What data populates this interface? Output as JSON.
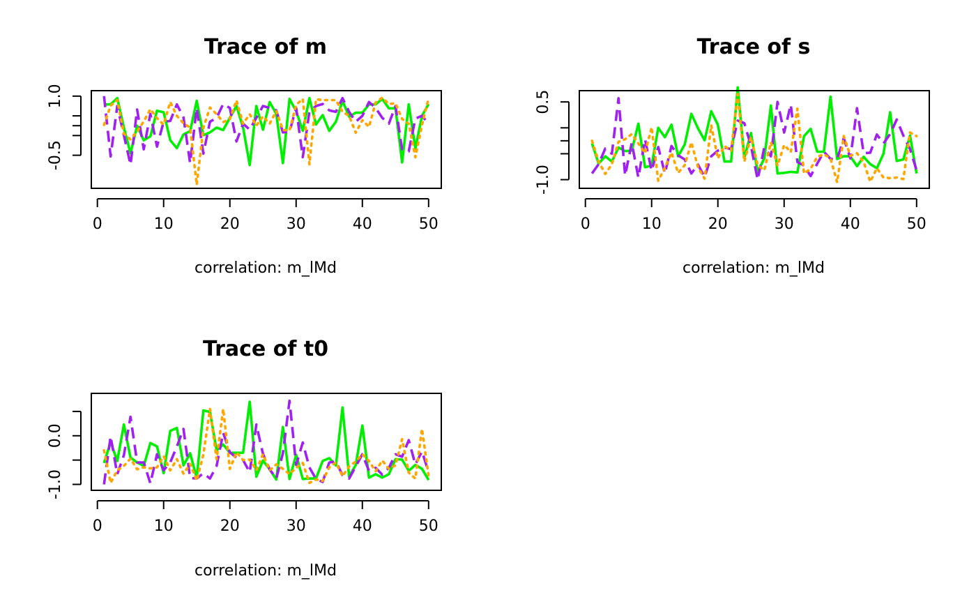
{
  "colors": {
    "green": "#00ee00",
    "purple": "#a020f0",
    "orange": "#ffa500",
    "axis": "#000000"
  },
  "chart_data": [
    {
      "type": "line",
      "title": "Trace of m",
      "xlabel": "correlation: m_lMd",
      "xlim": [
        1,
        50
      ],
      "ylim": [
        -1.25,
        1.05
      ],
      "x_ticks": [
        0,
        10,
        20,
        30,
        40,
        50
      ],
      "y_ticks": [
        1.0,
        0.25,
        -0.5
      ],
      "y_tick_labels": [
        "1.0",
        "",
        "-0.5"
      ],
      "y_minor_ticks": [
        0.5,
        0.0
      ],
      "x": [
        1,
        2,
        3,
        4,
        5,
        6,
        7,
        8,
        9,
        10,
        11,
        12,
        13,
        14,
        15,
        16,
        17,
        18,
        19,
        20,
        21,
        22,
        23,
        24,
        25,
        26,
        27,
        28,
        29,
        30,
        31,
        32,
        33,
        34,
        35,
        36,
        37,
        38,
        39,
        40,
        41,
        42,
        43,
        44,
        45,
        46,
        47,
        48,
        49,
        50
      ],
      "series": [
        {
          "style": "solid",
          "color": "#00ee00",
          "values": [
            0.79,
            0.79,
            0.95,
            0.2,
            -0.45,
            0.25,
            -0.12,
            -0.02,
            0.63,
            0.59,
            -0.12,
            -0.32,
            0.03,
            0.11,
            0.88,
            0.01,
            0.08,
            0.2,
            0.14,
            0.45,
            0.75,
            0.2,
            -0.75,
            0.75,
            0.15,
            0.85,
            0.55,
            -0.7,
            0.93,
            0.62,
            0.12,
            0.95,
            0.28,
            0.52,
            0.12,
            0.35,
            0.88,
            0.48,
            0.58,
            0.58,
            0.79,
            0.79,
            0.93,
            0.69,
            0.69,
            -0.68,
            0.79,
            -0.33,
            0.5,
            0.8
          ]
        },
        {
          "style": "dashed",
          "color": "#a020f0",
          "values": [
            1.0,
            -0.53,
            0.75,
            0.01,
            -0.74,
            0.66,
            -0.35,
            0.55,
            -0.28,
            0.35,
            0.37,
            0.79,
            0.46,
            -0.7,
            0.7,
            -0.46,
            0.35,
            0.45,
            0.8,
            0.7,
            -0.15,
            0.3,
            0.15,
            0.45,
            0.75,
            0.7,
            0.64,
            0.08,
            0.1,
            0.7,
            -0.55,
            0.6,
            0.75,
            0.8,
            0.64,
            0.6,
            0.95,
            0.6,
            0.35,
            0.5,
            0.85,
            0.7,
            0.45,
            0.3,
            0.75,
            -0.35,
            -0.4,
            0.43,
            0.5,
            0.3
          ]
        },
        {
          "style": "dotted",
          "color": "#ffa500",
          "values": [
            0.27,
            0.76,
            0.9,
            0.05,
            -0.1,
            0.1,
            0.36,
            0.67,
            0.44,
            0.28,
            0.85,
            0.5,
            0.31,
            0.2,
            -1.25,
            0.2,
            0.71,
            0.54,
            0.34,
            0.42,
            0.89,
            0.3,
            0.54,
            0.25,
            0.49,
            0.3,
            0.62,
            0.14,
            0.13,
            0.78,
            0.93,
            -0.73,
            0.92,
            0.9,
            0.9,
            0.9,
            0.6,
            0.5,
            0.07,
            0.39,
            0.22,
            0.84,
            0.96,
            0.8,
            0.82,
            0.42,
            0.3,
            -0.55,
            0.27,
            0.95
          ]
        }
      ]
    },
    {
      "type": "line",
      "title": "Trace of s",
      "xlabel": "correlation: m_lMd",
      "xlim": [
        1,
        50
      ],
      "ylim": [
        -1.1,
        0.65
      ],
      "x_ticks": [
        0,
        10,
        20,
        30,
        40,
        50
      ],
      "y_ticks": [
        0.5,
        -0.25,
        -1.0
      ],
      "y_tick_labels": [
        "0.5",
        "",
        "-1.0"
      ],
      "y_minor_ticks": [
        0.0,
        -0.5
      ],
      "x": [
        1,
        2,
        3,
        4,
        5,
        6,
        7,
        8,
        9,
        10,
        11,
        12,
        13,
        14,
        15,
        16,
        17,
        18,
        19,
        20,
        21,
        22,
        23,
        24,
        25,
        26,
        27,
        28,
        29,
        30,
        31,
        32,
        33,
        34,
        35,
        36,
        37,
        38,
        39,
        40,
        41,
        42,
        43,
        44,
        45,
        46,
        47,
        48,
        49,
        50
      ],
      "series": [
        {
          "style": "solid",
          "color": "#00ee00",
          "values": [
            -0.3,
            -0.69,
            -0.55,
            -0.65,
            -0.38,
            -0.45,
            -0.44,
            0.08,
            -0.76,
            -0.73,
            -0.0,
            -0.18,
            0.06,
            -0.55,
            -0.32,
            0.27,
            -0.01,
            -0.24,
            0.32,
            0.06,
            -0.65,
            -0.65,
            0.78,
            -0.58,
            -0.1,
            -0.85,
            -0.59,
            0.43,
            -0.88,
            -0.87,
            -0.85,
            -0.86,
            -0.16,
            -0.02,
            -0.46,
            -0.46,
            0.6,
            -0.6,
            -0.55,
            -0.55,
            -0.74,
            -0.56,
            -0.7,
            -0.78,
            -0.5,
            0.3,
            -0.64,
            -0.61,
            -0.15,
            -0.88
          ]
        },
        {
          "style": "dashed",
          "color": "#a020f0",
          "values": [
            -0.88,
            -0.7,
            -0.4,
            -0.5,
            0.57,
            -0.92,
            -0.29,
            -0.96,
            -0.22,
            -0.83,
            -0.37,
            -0.88,
            -0.35,
            -0.53,
            -0.61,
            -0.88,
            -0.71,
            -0.95,
            -0.55,
            -0.44,
            -0.38,
            -0.41,
            0.14,
            0.09,
            -0.35,
            -1.0,
            -0.38,
            -0.55,
            0.5,
            -0.09,
            0.45,
            -0.66,
            -0.73,
            -0.93,
            -0.69,
            -0.46,
            -0.6,
            -0.6,
            -0.2,
            -0.59,
            0.38,
            -0.49,
            -0.48,
            -0.13,
            -0.3,
            -0.12,
            0.16,
            -0.15,
            -0.41,
            -0.82
          ]
        },
        {
          "style": "dotted",
          "color": "#ffa500",
          "values": [
            -0.25,
            -0.65,
            -0.89,
            -0.7,
            -0.27,
            -0.22,
            -0.12,
            -0.3,
            -0.49,
            0.01,
            -1.02,
            -0.77,
            -0.48,
            -0.87,
            -0.72,
            -0.28,
            -0.76,
            -0.98,
            0.05,
            -0.59,
            -0.35,
            -0.44,
            0.65,
            -0.65,
            -0.18,
            -0.72,
            -0.82,
            -0.28,
            -0.73,
            -0.33,
            -0.47,
            0.37,
            -0.88,
            -0.79,
            -0.56,
            -0.51,
            -0.59,
            -1.05,
            -0.16,
            -0.54,
            -0.49,
            -0.66,
            -1.04,
            -0.78,
            -0.96,
            -0.97,
            -0.96,
            -0.99,
            -0.09,
            -0.16
          ]
        }
      ]
    },
    {
      "type": "line",
      "title": "Trace of t0",
      "xlabel": "correlation: m_lMd",
      "xlim": [
        1,
        50
      ],
      "ylim": [
        -1.05,
        0.8
      ],
      "x_ticks": [
        0,
        10,
        20,
        30,
        40,
        50
      ],
      "y_ticks": [
        0.0,
        -1.0
      ],
      "y_tick_labels": [
        "0.0",
        "-1.0"
      ],
      "y_minor_ticks": [
        0.5,
        -0.5
      ],
      "x": [
        1,
        2,
        3,
        4,
        5,
        6,
        7,
        8,
        9,
        10,
        11,
        12,
        13,
        14,
        15,
        16,
        17,
        18,
        19,
        20,
        21,
        22,
        23,
        24,
        25,
        26,
        27,
        28,
        29,
        30,
        31,
        32,
        33,
        34,
        35,
        36,
        37,
        38,
        39,
        40,
        41,
        42,
        43,
        44,
        45,
        46,
        47,
        48,
        49,
        50
      ],
      "series": [
        {
          "style": "solid",
          "color": "#00ee00",
          "values": [
            -0.56,
            -0.13,
            -0.52,
            0.23,
            -0.45,
            -0.55,
            -0.62,
            -0.15,
            -0.22,
            -0.77,
            0.1,
            0.16,
            -0.61,
            -0.36,
            -0.87,
            0.52,
            0.49,
            -0.3,
            -0.18,
            -0.35,
            -0.35,
            -0.35,
            0.7,
            -0.84,
            -0.51,
            -0.69,
            -0.9,
            0.18,
            -0.89,
            -0.39,
            -0.89,
            -0.88,
            -0.88,
            -0.52,
            -0.46,
            -0.61,
            0.58,
            -0.84,
            -0.6,
            0.21,
            -0.86,
            -0.79,
            -0.86,
            -0.79,
            -0.48,
            -0.49,
            -0.72,
            -0.6,
            -0.68,
            -0.91
          ]
        },
        {
          "style": "dashed",
          "color": "#a020f0",
          "values": [
            -1.0,
            -0.01,
            -0.79,
            -0.4,
            0.39,
            -0.55,
            -0.55,
            -0.98,
            -0.38,
            -0.71,
            -0.55,
            -0.22,
            0.14,
            -0.87,
            -0.88,
            -0.77,
            -0.88,
            -0.62,
            0.06,
            -0.34,
            -0.45,
            -0.5,
            -0.75,
            0.23,
            -0.37,
            -0.69,
            -0.88,
            -0.36,
            0.72,
            -0.6,
            -0.14,
            -0.65,
            -0.89,
            -0.95,
            -0.55,
            -0.53,
            -0.81,
            -0.88,
            -0.63,
            -0.38,
            -0.72,
            -0.66,
            -0.8,
            -0.66,
            -0.38,
            -0.43,
            -0.09,
            -0.59,
            -0.32,
            -0.75
          ]
        },
        {
          "style": "dotted",
          "color": "#ffa500",
          "values": [
            -0.3,
            -0.97,
            -0.71,
            -0.62,
            -0.47,
            -0.69,
            -0.65,
            -0.67,
            -0.65,
            -0.42,
            -0.71,
            -0.48,
            -0.78,
            -0.58,
            -0.92,
            -0.39,
            0.55,
            -0.48,
            0.55,
            -0.68,
            -0.34,
            -0.5,
            -0.49,
            -0.71,
            -0.38,
            -0.71,
            -0.59,
            -0.68,
            -0.79,
            -0.66,
            -0.56,
            -0.97,
            -0.9,
            -0.93,
            -0.65,
            -0.55,
            -0.83,
            -0.63,
            -0.53,
            -0.38,
            -0.52,
            -0.73,
            -0.51,
            -0.68,
            -0.61,
            -0.07,
            -0.76,
            -0.88,
            0.14,
            -0.83
          ]
        }
      ]
    }
  ]
}
